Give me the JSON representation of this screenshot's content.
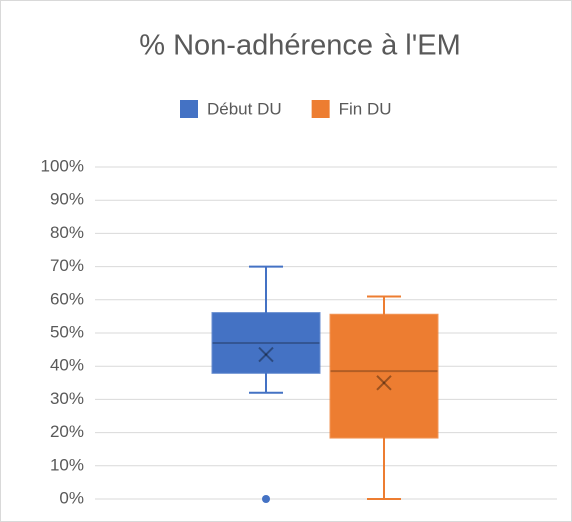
{
  "chart_data": {
    "type": "box",
    "title": "% Non-adhérence à l'EM",
    "series": [
      {
        "name": "Début DU",
        "color": "#4472c4",
        "min": 32,
        "q1": 38,
        "median": 47,
        "q3": 56,
        "max": 70,
        "mean": 43.5,
        "outliers": [
          0
        ]
      },
      {
        "name": "Fin DU",
        "color": "#ed7d31",
        "min": 0,
        "q1": 18.5,
        "median": 38.5,
        "q3": 55.5,
        "max": 61,
        "mean": 35,
        "outliers": []
      }
    ],
    "ylim": [
      0,
      100
    ],
    "yticks": [
      {
        "value": 0,
        "label": "0%"
      },
      {
        "value": 10,
        "label": "10%"
      },
      {
        "value": 20,
        "label": "20%"
      },
      {
        "value": 30,
        "label": "30%"
      },
      {
        "value": 40,
        "label": "40%"
      },
      {
        "value": 50,
        "label": "50%"
      },
      {
        "value": 60,
        "label": "60%"
      },
      {
        "value": 70,
        "label": "70%"
      },
      {
        "value": 80,
        "label": "80%"
      },
      {
        "value": 90,
        "label": "90%"
      },
      {
        "value": 100,
        "label": "100%"
      }
    ],
    "grid": true,
    "legend": "top"
  }
}
